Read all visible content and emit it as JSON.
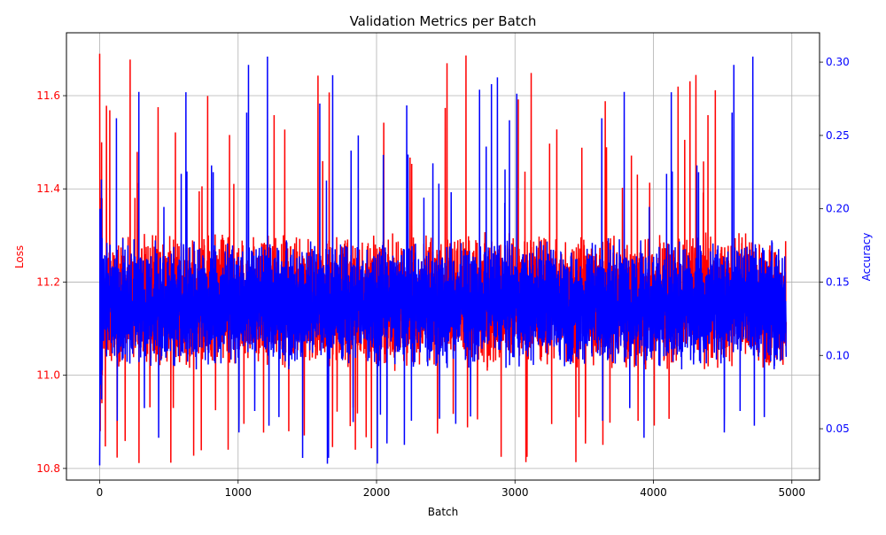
{
  "chart_data": {
    "type": "line",
    "title": "Validation Metrics per Batch",
    "xlabel": "Batch",
    "xlim": [
      -240,
      5200
    ],
    "xticks": [
      0,
      1000,
      2000,
      3000,
      4000,
      5000
    ],
    "grid": true,
    "n_points": 4960,
    "series": [
      {
        "name": "Loss",
        "axis": "left",
        "color": "#ff0000",
        "ylabel": "Loss",
        "ylim": [
          10.775,
          11.735
        ],
        "yticks": [
          10.8,
          11.0,
          11.2,
          11.4,
          11.6
        ],
        "ytick_labels": [
          "10.8",
          "11.0",
          "11.2",
          "11.4",
          "11.6"
        ],
        "range": [
          10.81,
          11.69
        ],
        "typical_band": [
          10.94,
          11.38
        ],
        "values": [
          11.69,
          11.44,
          11.22,
          11.05,
          10.88,
          11.38,
          11.31,
          11.0,
          11.38,
          11.06,
          11.25,
          11.1,
          10.97,
          11.31,
          11.5,
          11.06,
          10.94,
          11.38,
          11.13,
          11.0
        ]
      },
      {
        "name": "Accuracy",
        "axis": "right",
        "color": "#0000ff",
        "ylabel": "Accuracy",
        "ylim": [
          0.015,
          0.32
        ],
        "yticks": [
          0.05,
          0.1,
          0.15,
          0.2,
          0.25,
          0.3
        ],
        "ytick_labels": [
          "0.05",
          "0.10",
          "0.15",
          "0.20",
          "0.25",
          "0.30"
        ],
        "range": [
          0.025,
          0.305
        ],
        "typical_band": [
          0.07,
          0.2
        ],
        "values": [
          0.025,
          0.05,
          0.2,
          0.14,
          0.09,
          0.17,
          0.11,
          0.2,
          0.08,
          0.15,
          0.19,
          0.1,
          0.13,
          0.22,
          0.07,
          0.16,
          0.12,
          0.18,
          0.09,
          0.14
        ]
      }
    ]
  }
}
